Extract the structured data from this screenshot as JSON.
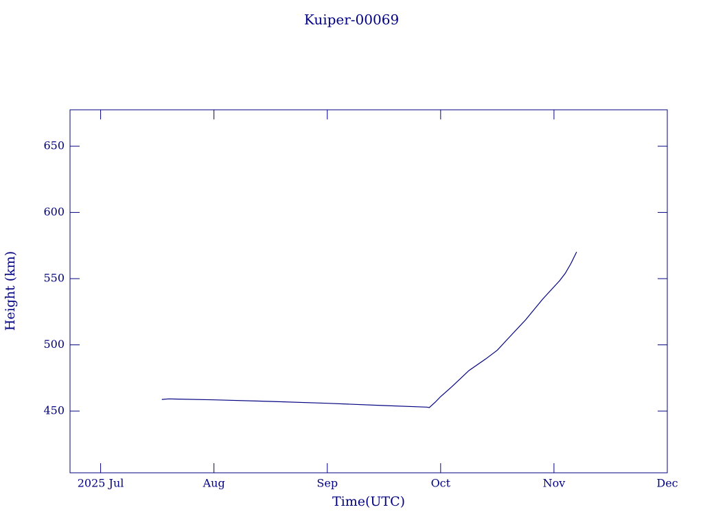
{
  "chart_data": {
    "type": "line",
    "title": "Kuiper-00069",
    "x_label": "Time(UTC)",
    "y_label": "Height (km)",
    "x": [
      7.54,
      7.6,
      8.0,
      8.5,
      9.0,
      9.5,
      9.88,
      9.9,
      9.95,
      10.0,
      10.1,
      10.25,
      10.4,
      10.5,
      10.6,
      10.75,
      10.9,
      11.0,
      11.05,
      11.1,
      11.15,
      11.2
    ],
    "values": [
      458.8,
      459.2,
      458.5,
      457.3,
      455.9,
      454.2,
      453.0,
      452.6,
      456.5,
      460.9,
      468.5,
      480.6,
      489.5,
      496,
      505.2,
      518.9,
      534.5,
      543.8,
      548.5,
      554,
      561.5,
      570.2
    ],
    "color": "#000080",
    "xlim": [
      6.73,
      12.0
    ],
    "xticks": [
      {
        "value": 7,
        "label": "2025 Jul"
      },
      {
        "value": 8,
        "label": "Aug"
      },
      {
        "value": 9,
        "label": "Sep"
      },
      {
        "value": 10,
        "label": "Oct"
      },
      {
        "value": 11,
        "label": "Nov"
      },
      {
        "value": 12,
        "label": "Dec"
      }
    ],
    "ylim": [
      403.4,
      677.5
    ],
    "yticks": [
      450,
      500,
      550,
      600,
      650
    ]
  }
}
